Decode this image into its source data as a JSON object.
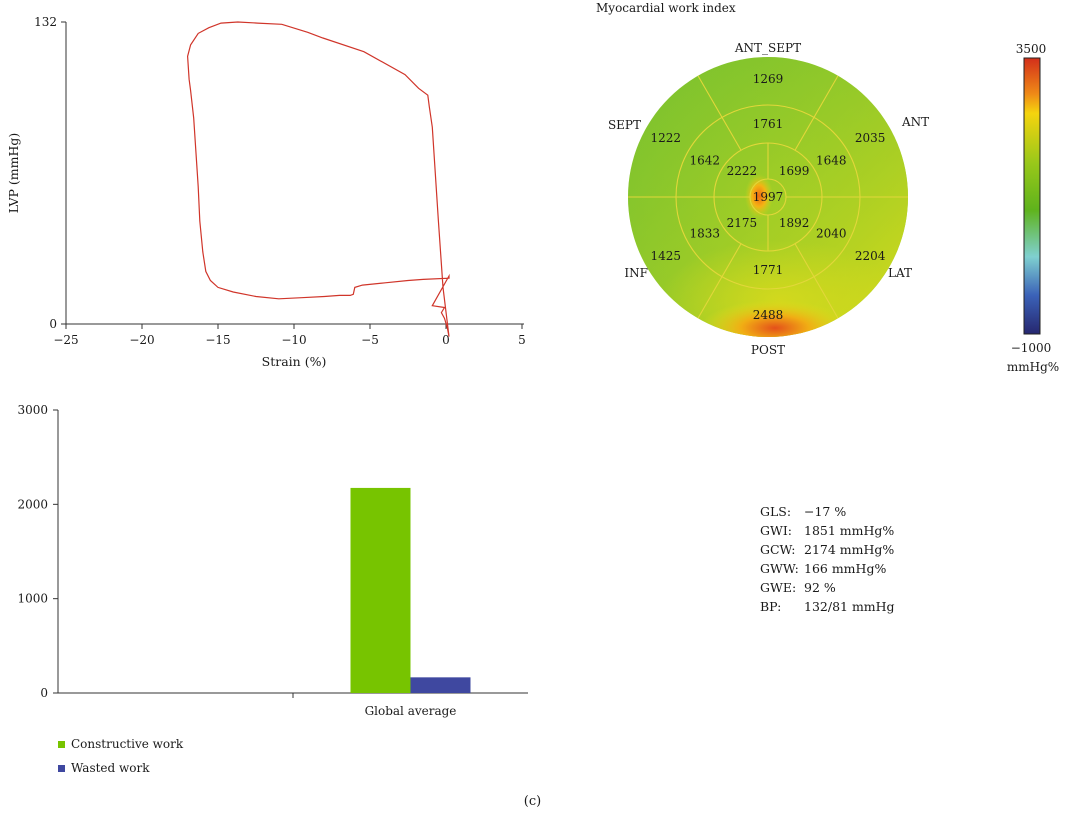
{
  "chart_data": [
    {
      "type": "line",
      "title": "",
      "xlabel": "Strain (%)",
      "ylabel": "LVP (mmHg)",
      "xlim": [
        -25,
        5
      ],
      "ylim": [
        0,
        132
      ],
      "x_ticks": [
        "−25",
        "−20",
        "−15",
        "−10",
        "−5",
        "0",
        "5"
      ],
      "y_ticks": [
        "0",
        "132"
      ],
      "grid": false,
      "series": [
        {
          "color": "#d0352a",
          "points": [
            [
              -0.9,
              8
            ],
            [
              -0.1,
              7.2
            ],
            [
              -0.3,
              5
            ],
            [
              -0.1,
              2.5
            ],
            [
              0.1,
              -2
            ],
            [
              0.2,
              -5.5
            ],
            [
              -0.2,
              16
            ],
            [
              -0.5,
              45
            ],
            [
              -0.9,
              86
            ],
            [
              -1.1,
              95
            ],
            [
              -1.2,
              100
            ],
            [
              -1.8,
              103
            ],
            [
              -2.7,
              109
            ],
            [
              -5.4,
              119
            ],
            [
              -8.1,
              125
            ],
            [
              -9.1,
              127.5
            ],
            [
              -10.8,
              131
            ],
            [
              -12.4,
              131.5
            ],
            [
              -13.7,
              132
            ],
            [
              -14.8,
              131.5
            ],
            [
              -15.6,
              129.5
            ],
            [
              -16.3,
              127
            ],
            [
              -16.8,
              122
            ],
            [
              -17.0,
              117
            ],
            [
              -16.9,
              107
            ],
            [
              -16.8,
              102
            ],
            [
              -16.6,
              90
            ],
            [
              -16.5,
              80
            ],
            [
              -16.4,
              70
            ],
            [
              -16.3,
              60
            ],
            [
              -16.2,
              45
            ],
            [
              -16.0,
              31.5
            ],
            [
              -15.8,
              23
            ],
            [
              -15.5,
              19
            ],
            [
              -15.0,
              16
            ],
            [
              -14.0,
              14
            ],
            [
              -12.5,
              12
            ],
            [
              -11.0,
              11
            ],
            [
              -9.5,
              11.5
            ],
            [
              -8.0,
              12
            ],
            [
              -7.0,
              12.5
            ],
            [
              -6.3,
              12.5
            ],
            [
              -6.1,
              13
            ],
            [
              -6.0,
              16
            ],
            [
              -5.5,
              17
            ],
            [
              -4.0,
              18
            ],
            [
              -2.5,
              19
            ],
            [
              -1.5,
              19.5
            ],
            [
              0.2,
              20
            ],
            [
              0.2,
              21
            ]
          ]
        }
      ]
    },
    {
      "type": "bullseye",
      "title": "Myocardial work index",
      "unit": "mmHg%",
      "colorbar": {
        "max_label": "3500",
        "min_label": "−1000",
        "unit_label": "mmHg%",
        "colors": [
          "#d32f1a",
          "#ef8a17",
          "#f5d40e",
          "#99c81a",
          "#5fb31c",
          "#7fd0d0",
          "#3b62b8",
          "#26276f"
        ]
      },
      "wall_labels": {
        "ant_sept": "ANT_SEPT",
        "ant": "ANT",
        "lat": "LAT",
        "post": "POST",
        "inf": "INF",
        "sept": "SEPT"
      },
      "segments": {
        "basal": {
          "ant_sept": "1269",
          "ant": "2035",
          "lat": "2204",
          "post": "2488",
          "inf": "1425",
          "sept": "1222"
        },
        "mid": {
          "ant_sept": "1761",
          "ant": "1648",
          "lat": "2040",
          "post": "1771",
          "inf": "1833",
          "sept": "1642"
        },
        "apical": {
          "ant": "1699",
          "lat": "1892",
          "inf": "2175",
          "sept": "2222"
        },
        "apex": "1997"
      }
    },
    {
      "type": "bar",
      "categories": [
        "",
        "Global average"
      ],
      "series": [
        {
          "name": "Constructive work",
          "color": "#77c400",
          "values": [
            0,
            2174
          ]
        },
        {
          "name": "Wasted work",
          "color": "#3f48a0",
          "values": [
            0,
            166
          ]
        }
      ],
      "ylim": [
        0,
        3000
      ],
      "y_ticks": [
        "0",
        "1000",
        "2000",
        "3000"
      ],
      "grid": false,
      "legend": "bottom-left"
    }
  ],
  "stats": [
    {
      "label": "GLS:",
      "value": "−17 %"
    },
    {
      "label": "GWI:",
      "value": "1851 mmHg%"
    },
    {
      "label": "GCW:",
      "value": "2174 mmHg%"
    },
    {
      "label": "GWW:",
      "value": "166 mmHg%"
    },
    {
      "label": "GWE:",
      "value": "92 %"
    },
    {
      "label": "BP:",
      "value": "132/81 mmHg"
    }
  ],
  "caption": "(c)"
}
